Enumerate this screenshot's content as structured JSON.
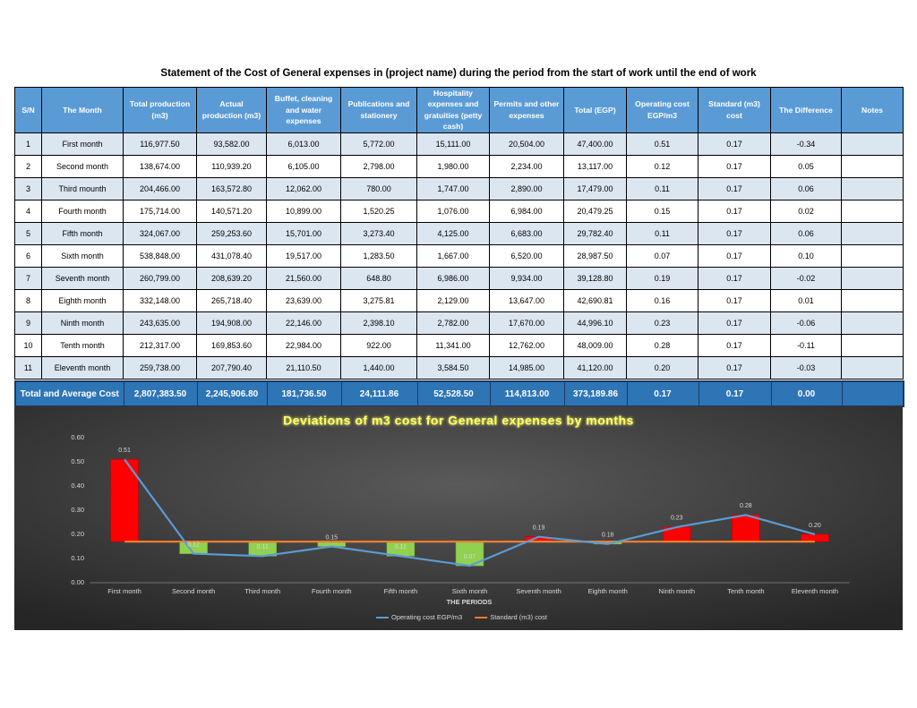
{
  "title": "Statement of the Cost of General expenses  in (project name) during the period from the start of work until the end of work",
  "table": {
    "headers": [
      "S/N",
      "The Month",
      "Total production (m3)",
      "Actual production (m3)",
      "Buffet, cleaning and water expenses",
      "Publications and stationery",
      "Hospitality expenses and gratuities (petty cash)",
      "Permits and other expenses",
      "Total (EGP)",
      "Operating cost EGP/m3",
      "Standard (m3) cost",
      "The Difference",
      "Notes"
    ],
    "rows": [
      [
        "1",
        "First month",
        "116,977.50",
        "93,582.00",
        "6,013.00",
        "5,772.00",
        "15,111.00",
        "20,504.00",
        "47,400.00",
        "0.51",
        "0.17",
        "-0.34"
      ],
      [
        "2",
        "Second month",
        "138,674.00",
        "110,939.20",
        "6,105.00",
        "2,798.00",
        "1,980.00",
        "2,234.00",
        "13,117.00",
        "0.12",
        "0.17",
        "0.05"
      ],
      [
        "3",
        "Third mounth",
        "204,466.00",
        "163,572.80",
        "12,062.00",
        "780.00",
        "1,747.00",
        "2,890.00",
        "17,479.00",
        "0.11",
        "0.17",
        "0.06"
      ],
      [
        "4",
        "Fourth month",
        "175,714.00",
        "140,571.20",
        "10,899.00",
        "1,520.25",
        "1,076.00",
        "6,984.00",
        "20,479.25",
        "0.15",
        "0.17",
        "0.02"
      ],
      [
        "5",
        "Fifth month",
        "324,067.00",
        "259,253.60",
        "15,701.00",
        "3,273.40",
        "4,125.00",
        "6,683.00",
        "29,782.40",
        "0.11",
        "0.17",
        "0.06"
      ],
      [
        "6",
        "Sixth month",
        "538,848.00",
        "431,078.40",
        "19,517.00",
        "1,283.50",
        "1,667.00",
        "6,520.00",
        "28,987.50",
        "0.07",
        "0.17",
        "0.10"
      ],
      [
        "7",
        "Seventh month",
        "260,799.00",
        "208,639.20",
        "21,560.00",
        "648.80",
        "6,986.00",
        "9,934.00",
        "39,128.80",
        "0.19",
        "0.17",
        "-0.02"
      ],
      [
        "8",
        "Eighth month",
        "332,148.00",
        "265,718.40",
        "23,639.00",
        "3,275.81",
        "2,129.00",
        "13,647.00",
        "42,690.81",
        "0.16",
        "0.17",
        "0.01"
      ],
      [
        "9",
        "Ninth month",
        "243,635.00",
        "194,908.00",
        "22,146.00",
        "2,398.10",
        "2,782.00",
        "17,670.00",
        "44,996.10",
        "0.23",
        "0.17",
        "-0.06"
      ],
      [
        "10",
        "Tenth month",
        "212,317.00",
        "169,853.60",
        "22,984.00",
        "922.00",
        "11,341.00",
        "12,762.00",
        "48,009.00",
        "0.28",
        "0.17",
        "-0.11"
      ],
      [
        "11",
        "Eleventh month",
        "259,738.00",
        "207,790.40",
        "21,110.50",
        "1,440.00",
        "3,584.50",
        "14,985.00",
        "41,120.00",
        "0.20",
        "0.17",
        "-0.03"
      ]
    ],
    "total": {
      "label": "Total and Average Cost",
      "values": [
        "2,807,383.50",
        "2,245,906.80",
        "181,736.50",
        "24,111.86",
        "52,528.50",
        "114,813.00",
        "373,189.86",
        "0.17",
        "0.17",
        "0.00"
      ]
    }
  },
  "chart_data": {
    "type": "line",
    "title": "Deviations of m3 cost for General expenses by months",
    "x_label": "THE PERIODS",
    "categories": [
      "First month",
      "Second month",
      "Third month",
      "Fourth month",
      "Fifth month",
      "Sixth month",
      "Seventh month",
      "Eighth month",
      "Ninth month",
      "Tenth month",
      "Eleventh month"
    ],
    "ylim": [
      0,
      0.6
    ],
    "yticks": [
      {
        "value": 0,
        "label": "0.00"
      },
      {
        "value": 0.1,
        "label": "0.10"
      },
      {
        "value": 0.2,
        "label": "0.20"
      },
      {
        "value": 0.3,
        "label": "0.30"
      },
      {
        "value": 0.4,
        "label": "0.40"
      },
      {
        "value": 0.5,
        "label": "0.50"
      },
      {
        "value": 0.6,
        "label": "0.60"
      }
    ],
    "series": [
      {
        "name": "Operating cost EGP/m3",
        "color": "#5b9bd5",
        "values": [
          0.51,
          0.12,
          0.11,
          0.15,
          0.11,
          0.07,
          0.19,
          0.16,
          0.23,
          0.28,
          0.2
        ],
        "value_labels": [
          "0.51",
          "0.12",
          "0.11",
          "0.15",
          "0.11",
          "0.07",
          "0.19",
          "0.16",
          "0.23",
          "0.28",
          "0.20"
        ]
      },
      {
        "name": "Standard (m3) cost",
        "color": "#ed7d31",
        "values": [
          0.17,
          0.17,
          0.17,
          0.17,
          0.17,
          0.17,
          0.17,
          0.17,
          0.17,
          0.17,
          0.17
        ]
      }
    ],
    "up_down_bars": {
      "up_color": "#ff0000",
      "down_color": "#92d050"
    },
    "legend": "bottom",
    "grid": false
  }
}
